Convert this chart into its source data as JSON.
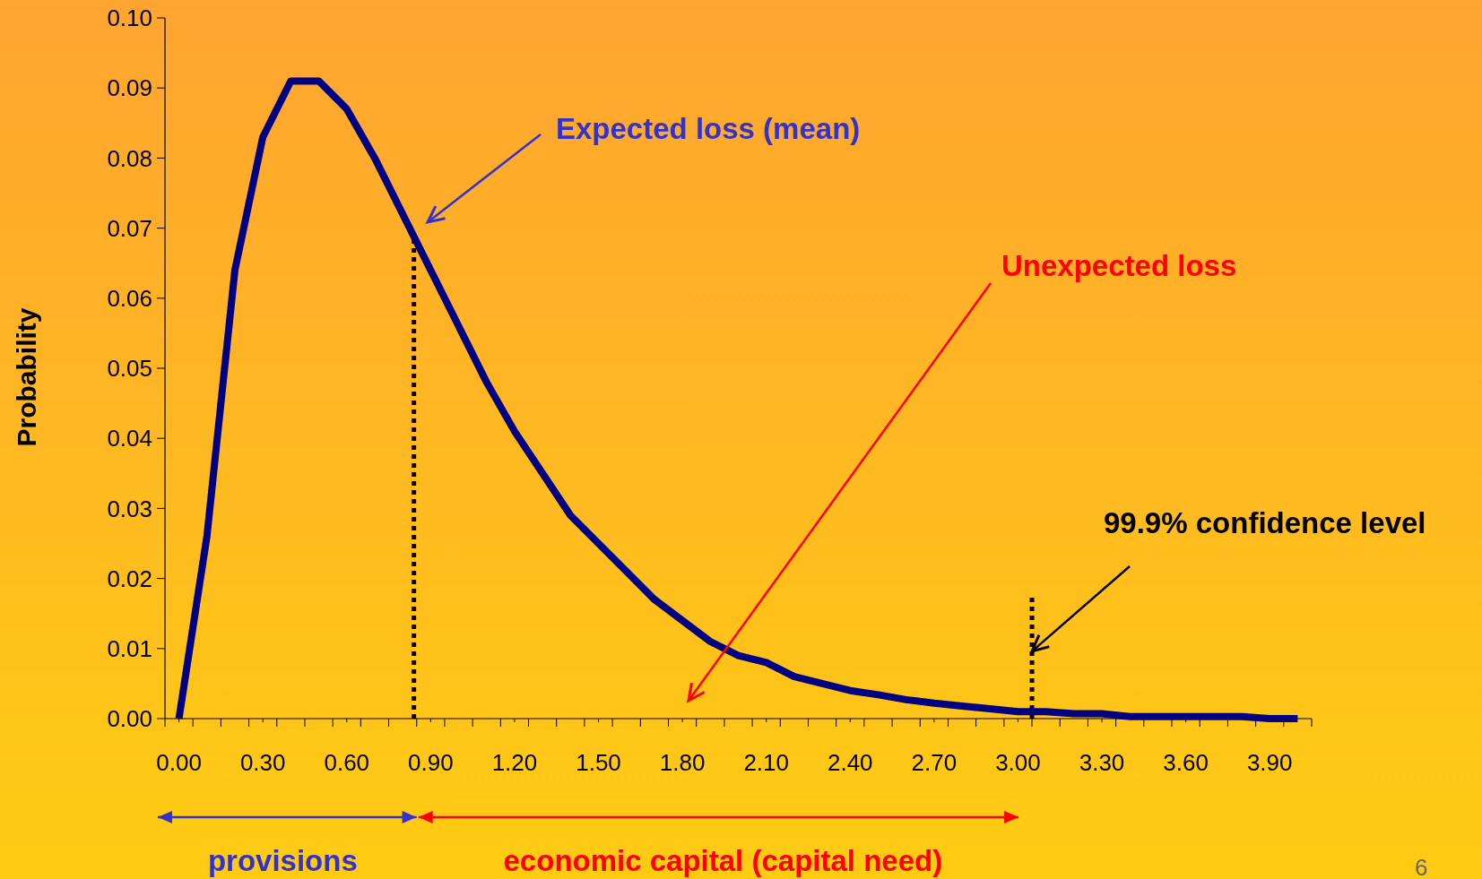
{
  "chart_data": {
    "type": "line",
    "ylabel": "Probability",
    "x": [
      0,
      0.1,
      0.2,
      0.3,
      0.4,
      0.5,
      0.6,
      0.7,
      0.8,
      0.9,
      1.0,
      1.1,
      1.2,
      1.3,
      1.4,
      1.5,
      1.6,
      1.7,
      1.8,
      1.9,
      2.0,
      2.1,
      2.2,
      2.3,
      2.4,
      2.5,
      2.6,
      2.7,
      2.8,
      2.9,
      3.0,
      3.1,
      3.2,
      3.3,
      3.4,
      3.5,
      3.6,
      3.7,
      3.8,
      3.9,
      4.0
    ],
    "series": [
      {
        "color": "#000080",
        "values": [
          0,
          0.026,
          0.064,
          0.083,
          0.091,
          0.091,
          0.087,
          0.08,
          0.072,
          0.064,
          0.056,
          0.048,
          0.041,
          0.035,
          0.029,
          0.025,
          0.021,
          0.017,
          0.014,
          0.011,
          0.009,
          0.008,
          0.006,
          0.005,
          0.004,
          0.0034,
          0.0027,
          0.0022,
          0.0018,
          0.0014,
          0.001,
          0.001,
          0.0007,
          0.0007,
          0.0003,
          0.0003,
          0.0003,
          0.0003,
          0.0003,
          0,
          0
        ]
      }
    ],
    "xlim": [
      -0.05,
      4.05
    ],
    "xticks": [
      {
        "value": -0.05,
        "label": null
      },
      {
        "value": 0.05,
        "label": null
      },
      {
        "value": 0.15,
        "label": null
      },
      {
        "value": 0.25,
        "label": null
      },
      {
        "value": 0.35,
        "label": null
      },
      {
        "value": 0.45,
        "label": null
      },
      {
        "value": 0.55,
        "label": null
      },
      {
        "value": 0.65,
        "label": null
      },
      {
        "value": 0.75,
        "label": null
      },
      {
        "value": 0.85,
        "label": null
      },
      {
        "value": 0.95,
        "label": null
      },
      {
        "value": 1.05,
        "label": null
      },
      {
        "value": 1.15,
        "label": null
      },
      {
        "value": 1.25,
        "label": null
      },
      {
        "value": 1.35,
        "label": null
      },
      {
        "value": 1.45,
        "label": null
      },
      {
        "value": 1.55,
        "label": null
      },
      {
        "value": 1.65,
        "label": null
      },
      {
        "value": 1.75,
        "label": null
      },
      {
        "value": 1.85,
        "label": null
      },
      {
        "value": 1.95,
        "label": null
      },
      {
        "value": 2.05,
        "label": null
      },
      {
        "value": 2.15,
        "label": null
      },
      {
        "value": 2.25,
        "label": null
      },
      {
        "value": 2.35,
        "label": null
      },
      {
        "value": 2.45,
        "label": null
      },
      {
        "value": 2.55,
        "label": null
      },
      {
        "value": 2.65,
        "label": null
      },
      {
        "value": 2.75,
        "label": null
      },
      {
        "value": 2.85,
        "label": null
      },
      {
        "value": 2.95,
        "label": null
      },
      {
        "value": 3.05,
        "label": null
      },
      {
        "value": 3.15,
        "label": null
      },
      {
        "value": 3.25,
        "label": null
      },
      {
        "value": 3.35,
        "label": null
      },
      {
        "value": 3.45,
        "label": null
      },
      {
        "value": 3.55,
        "label": null
      },
      {
        "value": 3.65,
        "label": null
      },
      {
        "value": 3.75,
        "label": null
      },
      {
        "value": 3.85,
        "label": null
      },
      {
        "value": 3.95,
        "label": null
      },
      {
        "value": 4.05,
        "label": null
      },
      {
        "value": 0,
        "label": "0.00"
      },
      {
        "value": 0.3,
        "label": "0.30"
      },
      {
        "value": 0.6,
        "label": "0.60"
      },
      {
        "value": 0.9,
        "label": "0.90"
      },
      {
        "value": 1.2,
        "label": "1.20"
      },
      {
        "value": 1.5,
        "label": "1.50"
      },
      {
        "value": 1.8,
        "label": "1.80"
      },
      {
        "value": 2.1,
        "label": "2.10"
      },
      {
        "value": 2.4,
        "label": "2.40"
      },
      {
        "value": 2.7,
        "label": "2.70"
      },
      {
        "value": 3.0,
        "label": "3.00"
      },
      {
        "value": 3.3,
        "label": "3.30"
      },
      {
        "value": 3.6,
        "label": "3.60"
      },
      {
        "value": 3.9,
        "label": "3.90"
      }
    ],
    "ylim": [
      0,
      0.1
    ],
    "yticks": [
      {
        "value": 0,
        "label": "0.00"
      },
      {
        "value": 0.01,
        "label": "0.01"
      },
      {
        "value": 0.02,
        "label": "0.02"
      },
      {
        "value": 0.03,
        "label": "0.03"
      },
      {
        "value": 0.04,
        "label": "0.04"
      },
      {
        "value": 0.05,
        "label": "0.05"
      },
      {
        "value": 0.06,
        "label": "0.06"
      },
      {
        "value": 0.07,
        "label": "0.07"
      },
      {
        "value": 0.08,
        "label": "0.08"
      },
      {
        "value": 0.09,
        "label": "0.09"
      },
      {
        "value": 0.1,
        "label": "0.10"
      }
    ],
    "grid": false,
    "marker": "none",
    "line_style": "solid",
    "ref_lines": [
      {
        "axis": "x",
        "value": 0.84,
        "color": "#000000",
        "line_style": "dotted"
      },
      {
        "axis": "x",
        "value": 3.05,
        "color": "#000000",
        "line_style": "dotted"
      }
    ],
    "annotations": [
      "Expected loss (mean)",
      "Unexpected loss",
      {
        "text": "99.9% confidence level",
        "x": 3.05,
        "y": 0.0096
      },
      "provisions",
      "economic capital (capital need)",
      "6"
    ]
  }
}
